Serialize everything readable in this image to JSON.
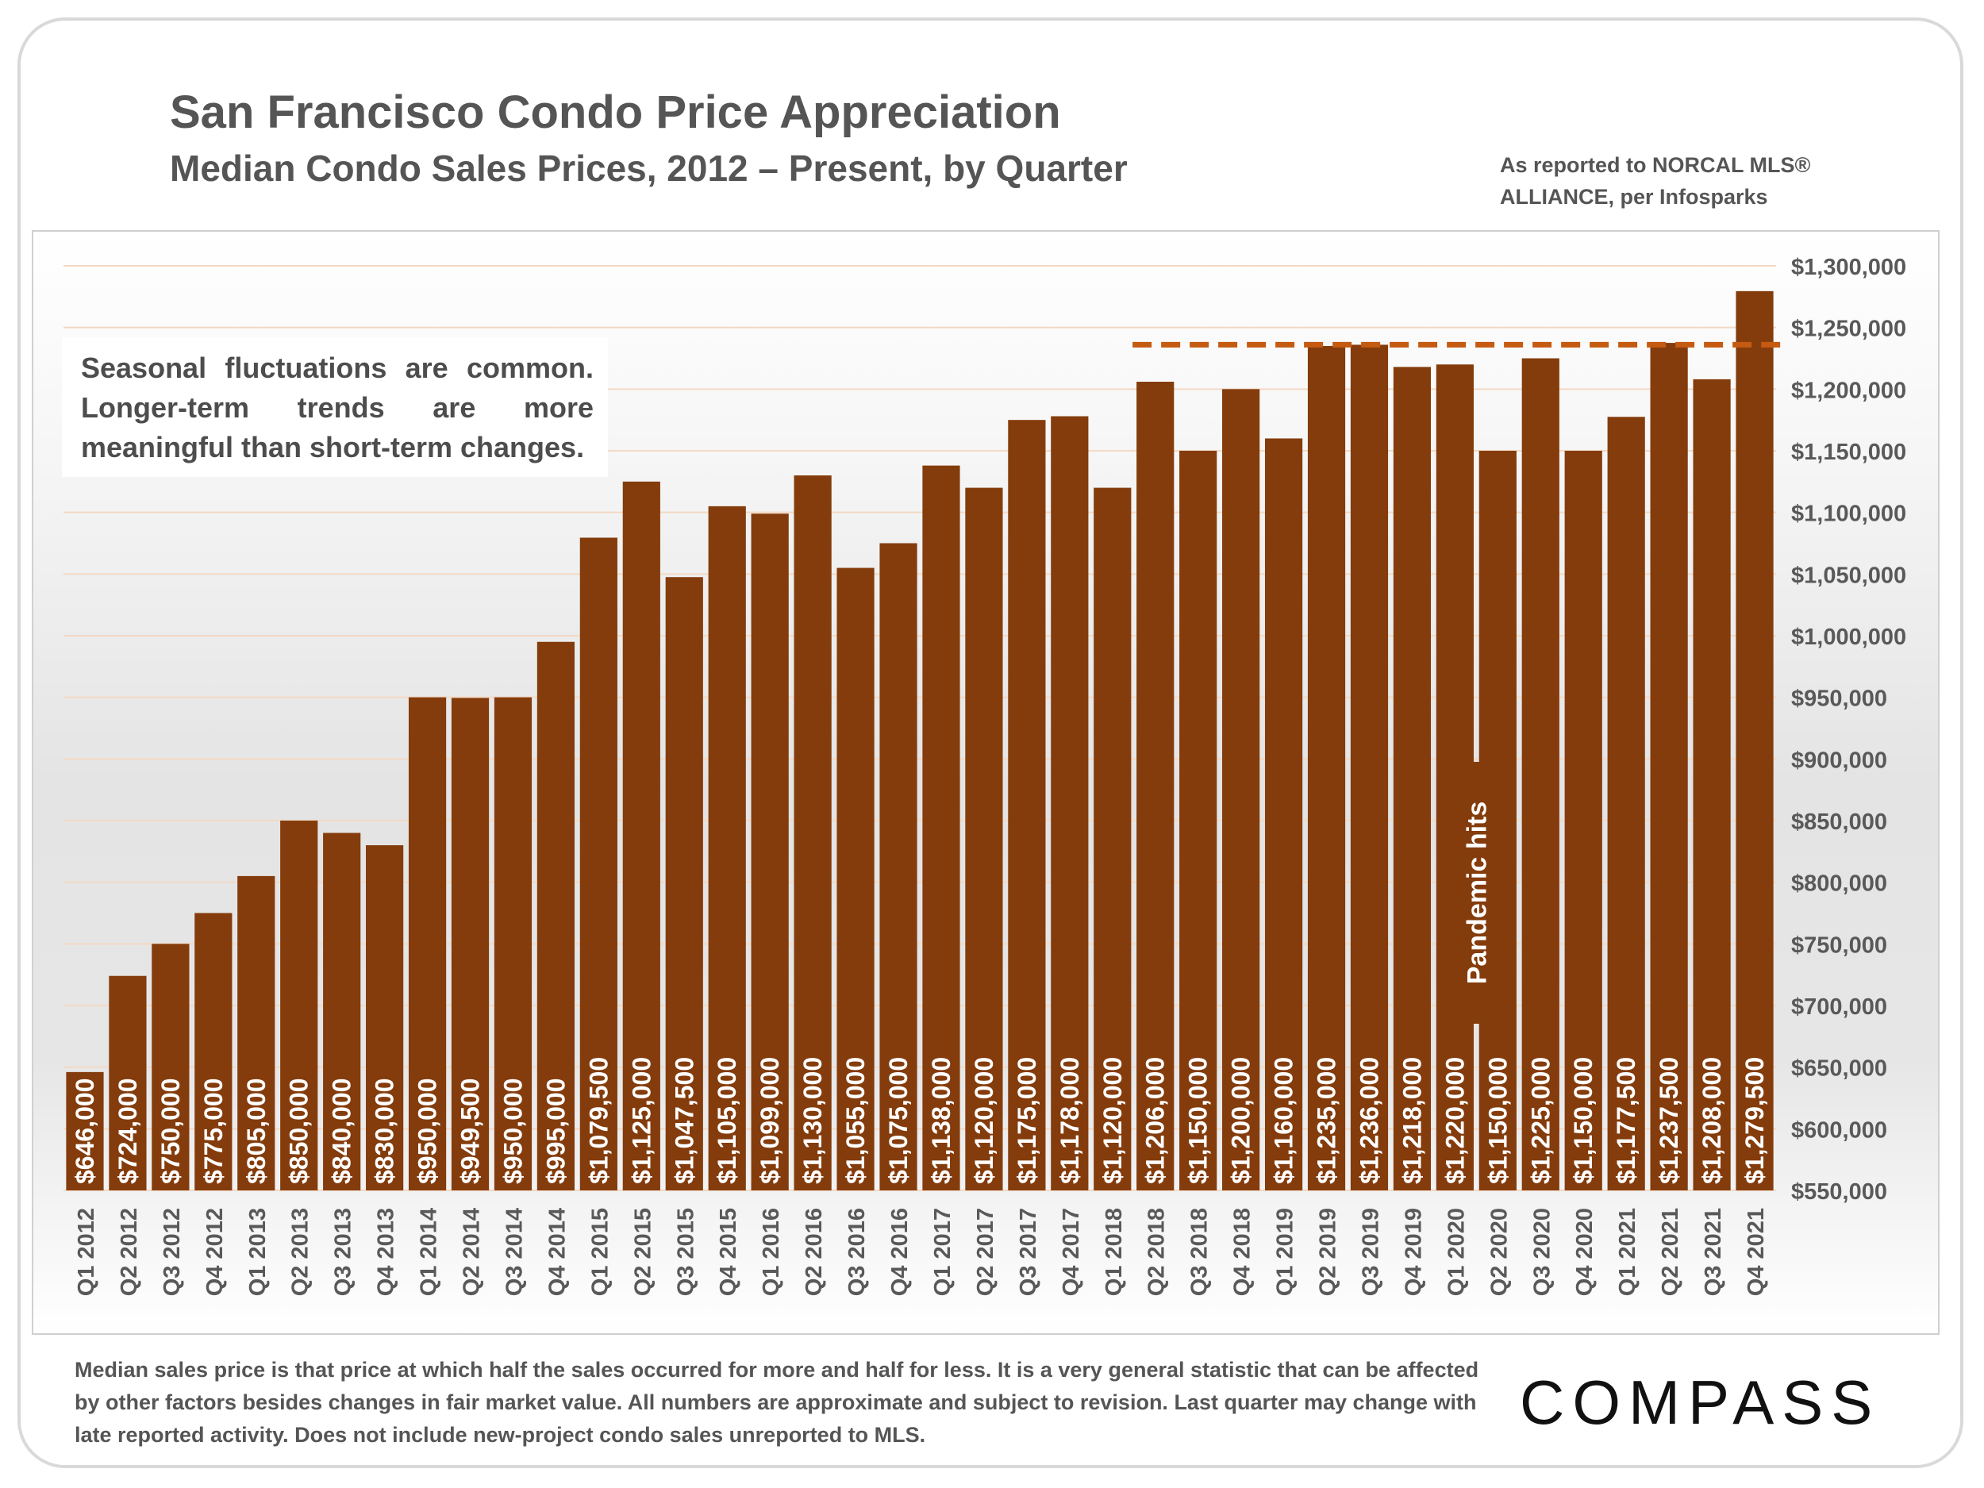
{
  "title": "San Francisco Condo Price Appreciation",
  "subtitle": "Median Condo Sales Prices, 2012 – Present, by Quarter",
  "source_note": "As reported to NORCAL MLS® ALLIANCE, per Infosparks",
  "annotation_box": "Seasonal fluctuations are common. Longer-term trends are more meaningful than short-term changes.",
  "footer_note": "Median sales price is that price at which half the sales occurred for more and half for less. It is a very general statistic that can be affected by other factors besides changes in fair market value. All numbers are approximate and subject to revision. Last quarter may change with late reported activity. Does not include new-project condo sales unreported to MLS.",
  "logo": "COMPASS",
  "colors": {
    "bar": "#843c0c",
    "reference_line": "#c55a11",
    "text": "#555555"
  },
  "chart_data": {
    "type": "bar",
    "title": "San Francisco Condo Price Appreciation",
    "subtitle": "Median Condo Sales Prices, 2012 – Present, by Quarter",
    "xlabel": "",
    "ylabel": "",
    "ylim": [
      550000,
      1300000
    ],
    "ytick_step": 50000,
    "ytick_labels": [
      "$550,000",
      "$600,000",
      "$650,000",
      "$700,000",
      "$750,000",
      "$800,000",
      "$850,000",
      "$900,000",
      "$950,000",
      "$1,000,000",
      "$1,050,000",
      "$1,100,000",
      "$1,150,000",
      "$1,200,000",
      "$1,250,000",
      "$1,300,000"
    ],
    "y_axis_position": "right",
    "grid": true,
    "categories": [
      "Q1 2012",
      "Q2 2012",
      "Q3 2012",
      "Q4 2012",
      "Q1 2013",
      "Q2 2013",
      "Q3 2013",
      "Q4 2013",
      "Q1 2014",
      "Q2 2014",
      "Q3 2014",
      "Q4 2014",
      "Q1 2015",
      "Q2 2015",
      "Q3 2015",
      "Q4 2015",
      "Q1 2016",
      "Q2 2016",
      "Q3 2016",
      "Q4 2016",
      "Q1 2017",
      "Q2 2017",
      "Q3 2017",
      "Q4 2017",
      "Q1 2018",
      "Q2 2018",
      "Q3 2018",
      "Q4 2018",
      "Q1 2019",
      "Q2 2019",
      "Q3 2019",
      "Q4 2019",
      "Q1 2020",
      "Q2 2020",
      "Q3 2020",
      "Q4 2020",
      "Q1 2021",
      "Q2 2021",
      "Q3 2021",
      "Q4 2021"
    ],
    "values": [
      646000,
      724000,
      750000,
      775000,
      805000,
      850000,
      840000,
      830000,
      950000,
      949500,
      950000,
      995000,
      1079500,
      1125000,
      1047500,
      1105000,
      1099000,
      1130000,
      1055000,
      1075000,
      1138000,
      1120000,
      1175000,
      1178000,
      1120000,
      1206000,
      1150000,
      1200000,
      1160000,
      1235000,
      1236000,
      1218000,
      1220000,
      1150000,
      1225000,
      1150000,
      1177500,
      1237500,
      1208000,
      1279500
    ],
    "data_labels": [
      "$646,000",
      "$724,000",
      "$750,000",
      "$775,000",
      "$805,000",
      "$850,000",
      "$840,000",
      "$830,000",
      "$950,000",
      "$949,500",
      "$950,000",
      "$995,000",
      "$1,079,500",
      "$1,125,000",
      "$1,047,500",
      "$1,105,000",
      "$1,099,000",
      "$1,130,000",
      "$1,055,000",
      "$1,075,000",
      "$1,138,000",
      "$1,120,000",
      "$1,175,000",
      "$1,178,000",
      "$1,120,000",
      "$1,206,000",
      "$1,150,000",
      "$1,200,000",
      "$1,160,000",
      "$1,235,000",
      "$1,236,000",
      "$1,218,000",
      "$1,220,000",
      "$1,150,000",
      "$1,225,000",
      "$1,150,000",
      "$1,177,500",
      "$1,237,500",
      "$1,208,000",
      "$1,279,500"
    ],
    "reference_line": {
      "value": 1236000,
      "from_category": "Q2 2018",
      "to_category": "Q4 2021",
      "style": "dashed"
    },
    "annotations": [
      {
        "text": "Pandemic hits",
        "category": "Q1 2020",
        "orientation": "vertical"
      }
    ]
  }
}
